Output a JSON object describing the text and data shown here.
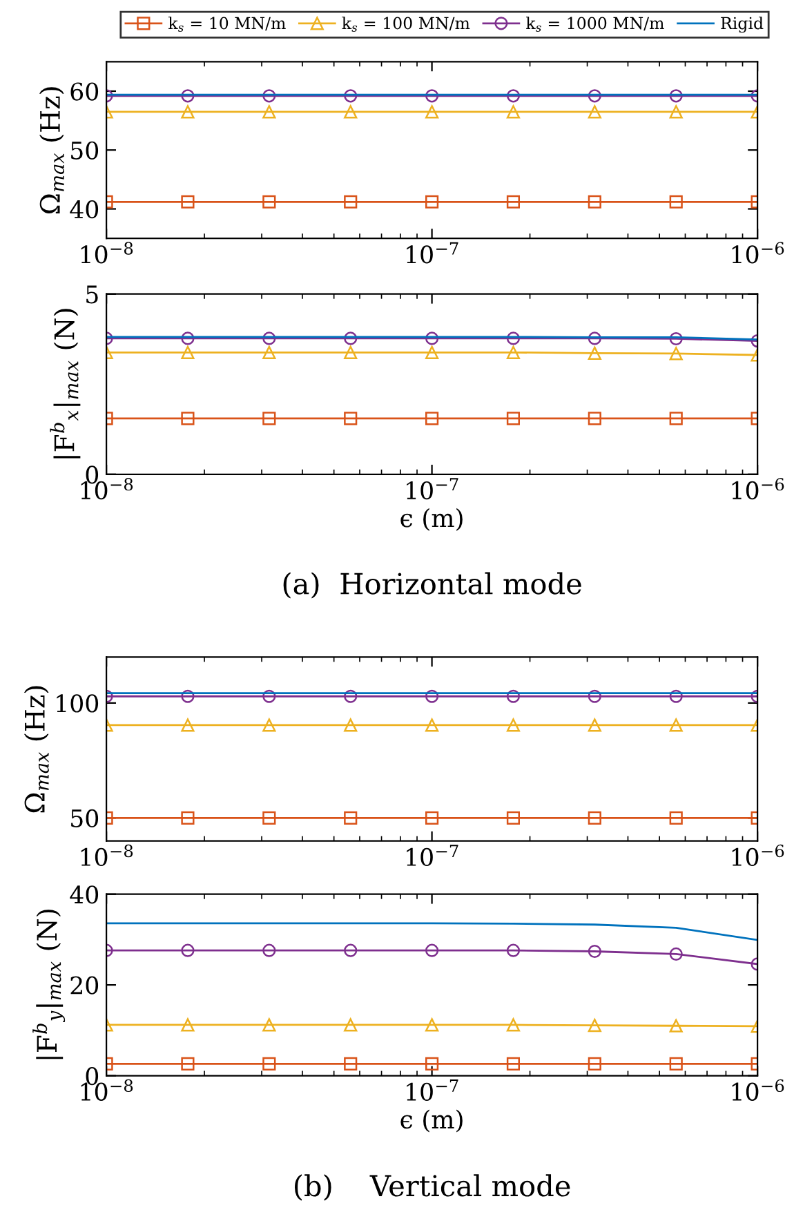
{
  "chart_data": [
    {
      "type": "line",
      "ylabel": "Ω$_{max}$ (Hz)",
      "log": "x",
      "xlim": [
        1e-08,
        1e-06
      ],
      "ylim": [
        35,
        65
      ],
      "yticks": [
        40,
        50,
        60
      ],
      "xticks": [
        {
          "value": 1e-08,
          "label": "10$^{−8}$"
        },
        {
          "value": 1e-07,
          "label": "10$^{−7}$"
        },
        {
          "value": 1e-06,
          "label": "10$^{−6}$"
        }
      ],
      "x": [
        1e-08,
        1.778e-08,
        3.162e-08,
        5.623e-08,
        1e-07,
        1.778e-07,
        3.162e-07,
        5.623e-07,
        1e-06
      ],
      "legend": "top",
      "grid": false,
      "series": [
        {
          "name": "k$_{s}$ = 10 MN/m",
          "color": "#d95319",
          "marker": "square",
          "values": [
            41.2,
            41.2,
            41.2,
            41.2,
            41.2,
            41.2,
            41.2,
            41.2,
            41.2
          ]
        },
        {
          "name": "k$_{s}$ = 100 MN/m",
          "color": "#edb120",
          "marker": "triangle",
          "values": [
            56.5,
            56.5,
            56.5,
            56.5,
            56.5,
            56.5,
            56.5,
            56.5,
            56.5
          ]
        },
        {
          "name": "k$_{s}$ = 1000 MN/m",
          "color": "#7e2f8e",
          "marker": "circle",
          "values": [
            59.2,
            59.2,
            59.2,
            59.2,
            59.2,
            59.2,
            59.2,
            59.2,
            59.2
          ]
        },
        {
          "name": "Rigid",
          "color": "#0072bd",
          "marker": "none",
          "values": [
            59.4,
            59.4,
            59.4,
            59.4,
            59.4,
            59.4,
            59.4,
            59.4,
            59.4
          ]
        }
      ]
    },
    {
      "type": "line",
      "ylabel": "|F$^{b}$$_{x}$|$_{max}$ (N)",
      "xlabel": "ϵ (m)",
      "log": "x",
      "xlim": [
        1e-08,
        1e-06
      ],
      "ylim": [
        0,
        5
      ],
      "yticks": [
        0,
        5
      ],
      "xticks": [
        {
          "value": 1e-08,
          "label": "10$^{−8}$"
        },
        {
          "value": 1e-07,
          "label": "10$^{−7}$"
        },
        {
          "value": 1e-06,
          "label": "10$^{−6}$"
        }
      ],
      "x": [
        1e-08,
        1.778e-08,
        3.162e-08,
        5.623e-08,
        1e-07,
        1.778e-07,
        3.162e-07,
        5.623e-07,
        1e-06
      ],
      "grid": false,
      "annotations": [
        "(a)  Horizontal mode"
      ],
      "series": [
        {
          "color": "#d95319",
          "marker": "square",
          "values": [
            1.55,
            1.55,
            1.55,
            1.55,
            1.55,
            1.55,
            1.55,
            1.55,
            1.55
          ]
        },
        {
          "color": "#edb120",
          "marker": "triangle",
          "values": [
            3.38,
            3.38,
            3.38,
            3.38,
            3.38,
            3.38,
            3.36,
            3.35,
            3.31
          ]
        },
        {
          "color": "#7e2f8e",
          "marker": "circle",
          "values": [
            3.77,
            3.77,
            3.77,
            3.77,
            3.77,
            3.77,
            3.77,
            3.76,
            3.7
          ]
        },
        {
          "color": "#0072bd",
          "marker": "none",
          "values": [
            3.81,
            3.81,
            3.81,
            3.81,
            3.81,
            3.81,
            3.8,
            3.8,
            3.74
          ]
        }
      ]
    },
    {
      "type": "line",
      "ylabel": "Ω$_{max}$ (Hz)",
      "log": "x",
      "xlim": [
        1e-08,
        1e-06
      ],
      "ylim": [
        40,
        120
      ],
      "yticks": [
        50,
        100
      ],
      "xticks": [
        {
          "value": 1e-08,
          "label": "10$^{−8}$"
        },
        {
          "value": 1e-07,
          "label": "10$^{−7}$"
        },
        {
          "value": 1e-06,
          "label": "10$^{−6}$"
        }
      ],
      "x": [
        1e-08,
        1.778e-08,
        3.162e-08,
        5.623e-08,
        1e-07,
        1.778e-07,
        3.162e-07,
        5.623e-07,
        1e-06
      ],
      "grid": false,
      "series": [
        {
          "color": "#d95319",
          "marker": "square",
          "values": [
            50,
            50,
            50,
            50,
            50,
            50,
            50,
            50,
            50
          ]
        },
        {
          "color": "#edb120",
          "marker": "triangle",
          "values": [
            90.4,
            90.4,
            90.4,
            90.4,
            90.4,
            90.4,
            90.4,
            90.4,
            90.4
          ]
        },
        {
          "color": "#7e2f8e",
          "marker": "circle",
          "values": [
            102.9,
            102.9,
            102.9,
            102.9,
            102.9,
            102.9,
            102.9,
            102.9,
            102.9
          ]
        },
        {
          "color": "#0072bd",
          "marker": "none",
          "values": [
            104.3,
            104.3,
            104.3,
            104.3,
            104.3,
            104.3,
            104.3,
            104.3,
            104.3
          ]
        }
      ]
    },
    {
      "type": "line",
      "ylabel": "|F$^{b}$$_{y}$|$_{max}$ (N)",
      "xlabel": "ϵ (m)",
      "log": "x",
      "xlim": [
        1e-08,
        1e-06
      ],
      "ylim": [
        0,
        40
      ],
      "yticks": [
        0,
        20,
        40
      ],
      "xticks": [
        {
          "value": 1e-08,
          "label": "10$^{−8}$"
        },
        {
          "value": 1e-07,
          "label": "10$^{−7}$"
        },
        {
          "value": 1e-06,
          "label": "10$^{−6}$"
        }
      ],
      "x": [
        1e-08,
        1.778e-08,
        3.162e-08,
        5.623e-08,
        1e-07,
        1.778e-07,
        3.162e-07,
        5.623e-07,
        1e-06
      ],
      "grid": false,
      "annotations": [
        "(b)    Vertical mode"
      ],
      "series": [
        {
          "color": "#d95319",
          "marker": "square",
          "values": [
            2.6,
            2.6,
            2.6,
            2.6,
            2.6,
            2.6,
            2.6,
            2.6,
            2.6
          ]
        },
        {
          "color": "#edb120",
          "marker": "triangle",
          "values": [
            11.2,
            11.2,
            11.2,
            11.2,
            11.2,
            11.2,
            11.1,
            11.0,
            10.9
          ]
        },
        {
          "color": "#7e2f8e",
          "marker": "circle",
          "values": [
            27.6,
            27.6,
            27.6,
            27.6,
            27.6,
            27.6,
            27.4,
            26.8,
            24.6
          ]
        },
        {
          "color": "#0072bd",
          "marker": "none",
          "values": [
            33.6,
            33.6,
            33.6,
            33.6,
            33.6,
            33.5,
            33.3,
            32.6,
            29.9
          ]
        }
      ]
    }
  ]
}
